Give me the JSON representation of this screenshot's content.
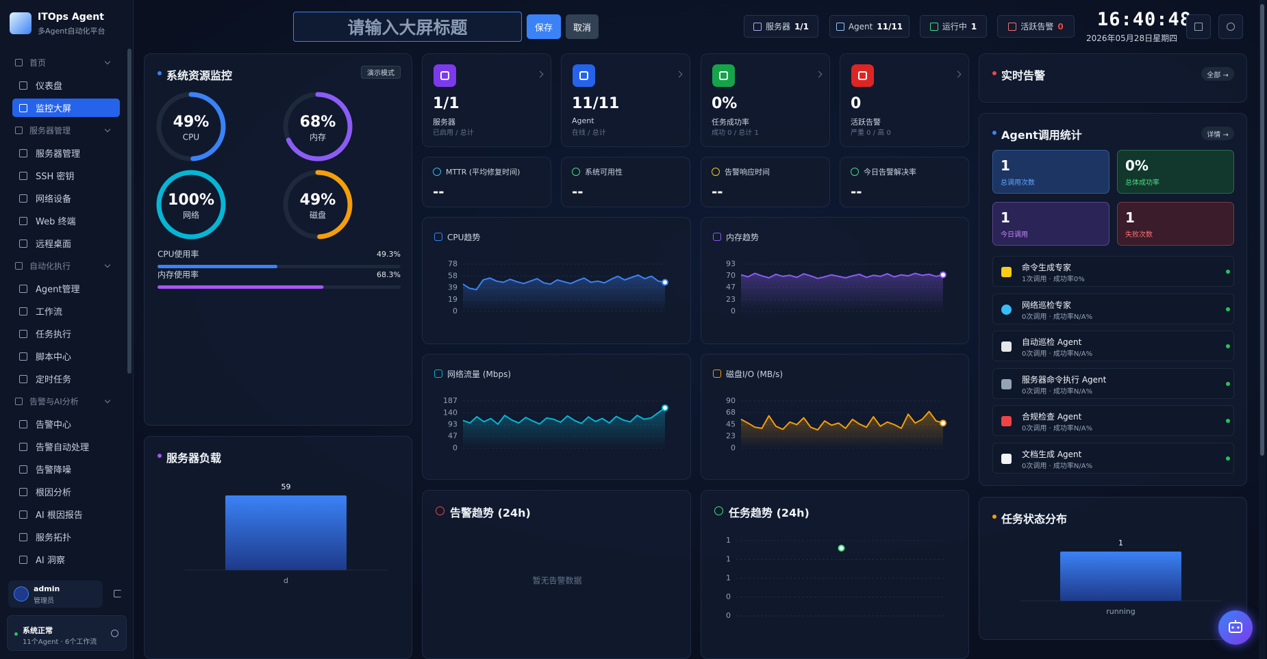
{
  "sidebar": {
    "brand_title": "ITOps Agent",
    "brand_subtitle": "多Agent自动化平台",
    "menu": [
      {
        "title": "首页",
        "items": [
          {
            "label": "仪表盘"
          },
          {
            "label": "监控大屏",
            "active": true
          }
        ]
      },
      {
        "title": "服务器管理",
        "items": [
          {
            "label": "服务器管理"
          },
          {
            "label": "SSH 密钥"
          },
          {
            "label": "网络设备"
          },
          {
            "label": "Web 终端"
          },
          {
            "label": "远程桌面"
          }
        ]
      },
      {
        "title": "自动化执行",
        "items": [
          {
            "label": "Agent管理"
          },
          {
            "label": "工作流"
          },
          {
            "label": "任务执行"
          },
          {
            "label": "脚本中心"
          },
          {
            "label": "定时任务"
          }
        ]
      },
      {
        "title": "告警与AI分析",
        "items": [
          {
            "label": "告警中心"
          },
          {
            "label": "告警自动处理"
          },
          {
            "label": "告警降噪"
          },
          {
            "label": "根因分析"
          },
          {
            "label": "AI 根因报告"
          },
          {
            "label": "服务拓扑"
          },
          {
            "label": "AI 洞察"
          }
        ]
      }
    ],
    "user": {
      "name": "admin",
      "role": "管理员"
    },
    "status": {
      "title": "系统正常",
      "detail": "11个Agent · 6个工作流"
    }
  },
  "header": {
    "title_placeholder": "请输入大屏标题",
    "save": "保存",
    "cancel": "取消",
    "badges": [
      {
        "label": "服务器",
        "value": "1/1"
      },
      {
        "label": "Agent",
        "value": "11/11"
      },
      {
        "label": "运行中",
        "value": "1"
      },
      {
        "label": "活跃告警",
        "value": "0"
      }
    ],
    "time": "16:40:48",
    "date": "2026年05月28日星期四"
  },
  "resource_monitor": {
    "title": "系统资源监控",
    "mode": "演示模式",
    "ylim": [
      0,
      100
    ],
    "gauges": {
      "labels": [
        "CPU",
        "内存",
        "网络",
        "磁盘"
      ],
      "values": [
        49,
        68,
        100,
        49
      ],
      "value_labels": [
        "49%",
        "68%",
        "100%",
        "49%"
      ],
      "colors": [
        "#3b82f6",
        "#8b5cf6",
        "#06b6d4",
        "#f59e0b"
      ]
    },
    "usage": {
      "labels": [
        "CPU使用率",
        "内存使用率"
      ],
      "values": [
        49.3,
        68.3
      ],
      "value_labels": [
        "49.3%",
        "68.3%"
      ],
      "colors": [
        "#3b82f6",
        "#a855f7"
      ]
    }
  },
  "stat_cards": [
    {
      "value": "1/1",
      "label": "服务器",
      "sub": "已启用 / 总计",
      "color": "#7c3aed"
    },
    {
      "value": "11/11",
      "label": "Agent",
      "sub": "在线 / 总计",
      "color": "#2563eb"
    },
    {
      "value": "0%",
      "label": "任务成功率",
      "sub": "成功 0 / 总计 1",
      "color": "#16a34a"
    },
    {
      "value": "0",
      "label": "活跃告警",
      "sub": "严重 0 / 高 0",
      "color": "#dc2626"
    }
  ],
  "metrics": [
    {
      "label": "MTTR (平均修复时间)",
      "value": "--",
      "color": "#38bdf8"
    },
    {
      "label": "系统可用性",
      "value": "--",
      "color": "#4ade80"
    },
    {
      "label": "告警响应时间",
      "value": "--",
      "color": "#facc15"
    },
    {
      "label": "今日告警解决率",
      "value": "--",
      "color": "#4ade80"
    }
  ],
  "realtime_alerts": {
    "title": "实时告警",
    "link": "全部 →"
  },
  "agent_stats": {
    "title": "Agent调用统计",
    "link": "详情 →",
    "stats": [
      {
        "value": "1",
        "label": "总调用次数",
        "color": "#60a5fa",
        "bg": "#1c3563"
      },
      {
        "value": "0%",
        "label": "总体成功率",
        "color": "#4ade80",
        "bg": "#12372d"
      },
      {
        "value": "1",
        "label": "今日调用",
        "color": "#c084fc",
        "bg": "#2b2456"
      },
      {
        "value": "1",
        "label": "失败次数",
        "color": "#f87171",
        "bg": "#3a1c2a"
      }
    ],
    "agents": [
      {
        "name": "命令生成专家",
        "detail": "1次调用 · 成功率0%"
      },
      {
        "name": "网络巡检专家",
        "detail": "0次调用 · 成功率N/A%"
      },
      {
        "name": "自动巡检 Agent",
        "detail": "0次调用 · 成功率N/A%"
      },
      {
        "name": "服务器命令执行 Agent",
        "detail": "0次调用 · 成功率N/A%"
      },
      {
        "name": "合规检查 Agent",
        "detail": "0次调用 · 成功率N/A%"
      },
      {
        "name": "文档生成 Agent",
        "detail": "0次调用 · 成功率N/A%"
      }
    ]
  },
  "chart_data": [
    {
      "type": "line",
      "title": "CPU趋势",
      "color": "#3b82f6",
      "ylim": [
        0,
        78
      ],
      "yticks": [
        0,
        19,
        39,
        58,
        78
      ],
      "values": [
        45,
        38,
        36,
        52,
        55,
        50,
        48,
        53,
        49,
        46,
        50,
        54,
        47,
        45,
        52,
        49,
        46,
        51,
        55,
        48,
        50,
        47,
        53,
        58,
        52,
        56,
        60,
        54,
        58,
        50,
        48
      ]
    },
    {
      "type": "line",
      "title": "内存趋势",
      "color": "#8b5cf6",
      "ylim": [
        0,
        93
      ],
      "yticks": [
        0,
        23,
        47,
        70,
        93
      ],
      "values": [
        72,
        68,
        75,
        70,
        66,
        73,
        69,
        71,
        67,
        74,
        70,
        65,
        68,
        72,
        69,
        66,
        70,
        73,
        67,
        71,
        69,
        74,
        68,
        72,
        70,
        75,
        71,
        73,
        69,
        72
      ]
    },
    {
      "type": "line",
      "title": "网络流量 (Mbps)",
      "color": "#06b6d4",
      "ylim": [
        0,
        187
      ],
      "yticks": [
        0,
        47,
        93,
        140,
        187
      ],
      "values": [
        110,
        100,
        125,
        105,
        118,
        95,
        130,
        112,
        100,
        122,
        108,
        96,
        120,
        115,
        103,
        128,
        110,
        98,
        124,
        106,
        118,
        100,
        126,
        112,
        104,
        130,
        115,
        120,
        140,
        160
      ]
    },
    {
      "type": "line",
      "title": "磁盘I/O (MB/s)",
      "color": "#f59e0b",
      "ylim": [
        0,
        90
      ],
      "yticks": [
        0,
        23,
        45,
        68,
        90
      ],
      "values": [
        55,
        48,
        40,
        38,
        62,
        42,
        36,
        50,
        45,
        58,
        40,
        35,
        52,
        44,
        48,
        38,
        55,
        46,
        40,
        60,
        42,
        50,
        45,
        38,
        65,
        48,
        55,
        70,
        52,
        48
      ]
    },
    {
      "type": "bar",
      "title": "服务器负载",
      "color": "#3b82f6",
      "categories": [
        "d"
      ],
      "values": [
        59
      ]
    },
    {
      "type": "line",
      "title": "告警趋势 (24h)",
      "color": "#ef4444",
      "values": [],
      "empty_text": "暂无告警数据"
    },
    {
      "type": "line",
      "title": "任务趋势 (24h)",
      "color": "#4ade80",
      "ylim": [
        0,
        1
      ],
      "yticks": [
        0,
        {
          "value": 0.25,
          "label": "0"
        },
        {
          "value": 0.5,
          "label": "1"
        },
        {
          "value": 0.75,
          "label": "1"
        },
        1
      ],
      "values": [
        0.9
      ]
    },
    {
      "type": "bar",
      "title": "任务状态分布",
      "color": "#3b82f6",
      "categories": [
        "running"
      ],
      "values": [
        1
      ]
    }
  ]
}
